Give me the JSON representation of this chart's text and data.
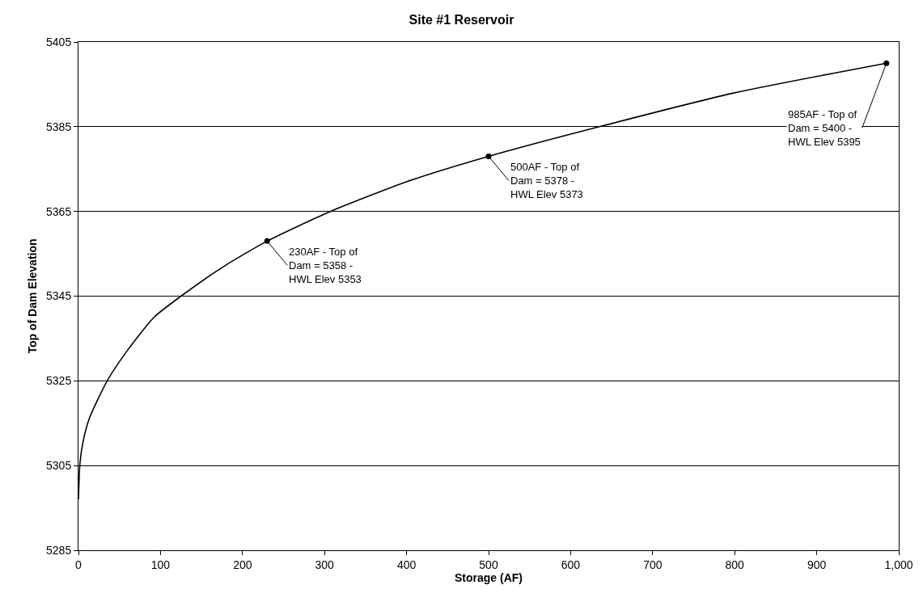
{
  "chart_data": {
    "type": "line",
    "title": "Site #1 Reservoir",
    "xlabel": "Storage (AF)",
    "ylabel": "Top of Dam Elevation",
    "series": [
      {
        "color": "#000000",
        "marker": "none",
        "x": [
          0,
          1.6,
          5,
          13,
          35,
          59,
          92,
          125,
          177,
          230,
          307,
          400,
          500,
          635,
          800,
          985
        ],
        "values": [
          5297,
          5305,
          5310,
          5316,
          5325,
          5332,
          5340,
          5345,
          5352,
          5358,
          5365,
          5372,
          5378,
          5385,
          5393,
          5400
        ]
      },
      {
        "type": "scatter",
        "color": "#000000",
        "marker": "circle",
        "x": [
          230,
          500,
          985
        ],
        "values": [
          5358,
          5378,
          5400
        ]
      }
    ],
    "annotations": [
      {
        "text": "230AF - Top of Dam = 5358 - HWL Elev 5353",
        "x": 230,
        "y": 5358
      },
      {
        "text": "500AF - Top of Dam = 5378 - HWL Elev 5373",
        "x": 500,
        "y": 5378
      },
      {
        "text": "985AF - Top of Dam = 5400 - HWL Elev 5395",
        "x": 985,
        "y": 5400
      }
    ],
    "xlim": [
      0,
      1000
    ],
    "xticks": [
      0,
      100,
      200,
      300,
      400,
      500,
      600,
      700,
      800,
      900,
      {
        "value": 1000,
        "label": "1,000"
      }
    ],
    "ylim": [
      5285,
      5405
    ],
    "yticks": [
      5285,
      5305,
      5325,
      5345,
      5365,
      5385,
      5405
    ],
    "grid": "y"
  }
}
